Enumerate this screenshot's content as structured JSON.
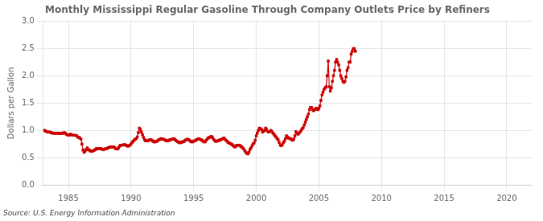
{
  "chart_data": {
    "type": "line",
    "title": "Monthly Mississippi Regular Gasoline Through Company Outlets Price by Refiners",
    "ylabel": "Dollars per Gallon",
    "annotations": [
      "Source: U.S. Energy Information Administration"
    ],
    "color": "#cc0000",
    "marker": "square",
    "line_style": "solid",
    "grid": true,
    "xlim": [
      1983,
      2022
    ],
    "ylim": [
      0.0,
      3.0
    ],
    "xticks": [
      1985,
      1990,
      1995,
      2000,
      2005,
      2010,
      2015,
      2020
    ],
    "yticks": [
      {
        "value": 0.0,
        "label": "0.0"
      },
      0.5,
      {
        "value": 1.0,
        "label": "1.0"
      },
      1.5,
      {
        "value": 2.0,
        "label": "2.0"
      },
      2.5,
      {
        "value": 3.0,
        "label": "3.0"
      }
    ],
    "x": [
      1983.0,
      1983.083,
      1983.167,
      1983.25,
      1983.333,
      1983.417,
      1983.5,
      1983.583,
      1983.667,
      1983.75,
      1983.833,
      1983.917,
      1984.0,
      1984.083,
      1984.167,
      1984.25,
      1984.333,
      1984.417,
      1984.5,
      1984.583,
      1984.667,
      1984.75,
      1984.833,
      1984.917,
      1985.0,
      1985.083,
      1985.167,
      1985.25,
      1985.333,
      1985.417,
      1985.5,
      1985.583,
      1985.667,
      1985.75,
      1985.833,
      1985.917,
      1986.0,
      1986.083,
      1986.167,
      1986.25,
      1986.333,
      1986.417,
      1986.5,
      1986.583,
      1986.667,
      1986.75,
      1986.833,
      1986.917,
      1987.0,
      1987.083,
      1987.167,
      1987.25,
      1987.333,
      1987.417,
      1987.5,
      1987.583,
      1987.667,
      1987.75,
      1987.833,
      1987.917,
      1988.0,
      1988.083,
      1988.167,
      1988.25,
      1988.333,
      1988.417,
      1988.5,
      1988.583,
      1988.667,
      1988.75,
      1988.833,
      1988.917,
      1989.0,
      1989.083,
      1989.167,
      1989.25,
      1989.333,
      1989.417,
      1989.5,
      1989.583,
      1989.667,
      1989.75,
      1989.833,
      1989.917,
      1990.0,
      1990.083,
      1990.167,
      1990.25,
      1990.333,
      1990.417,
      1990.5,
      1990.583,
      1990.667,
      1990.75,
      1990.833,
      1990.917,
      1991.0,
      1991.083,
      1991.167,
      1991.25,
      1991.333,
      1991.417,
      1991.5,
      1991.583,
      1991.667,
      1991.75,
      1991.833,
      1991.917,
      1992.0,
      1992.083,
      1992.167,
      1992.25,
      1992.333,
      1992.417,
      1992.5,
      1992.583,
      1992.667,
      1992.75,
      1992.833,
      1992.917,
      1993.0,
      1993.083,
      1993.167,
      1993.25,
      1993.333,
      1993.417,
      1993.5,
      1993.583,
      1993.667,
      1993.75,
      1993.833,
      1993.917,
      1994.0,
      1994.083,
      1994.167,
      1994.25,
      1994.333,
      1994.417,
      1994.5,
      1994.583,
      1994.667,
      1994.75,
      1994.833,
      1994.917,
      1995.0,
      1995.083,
      1995.167,
      1995.25,
      1995.333,
      1995.417,
      1995.5,
      1995.583,
      1995.667,
      1995.75,
      1995.833,
      1995.917,
      1996.0,
      1996.083,
      1996.167,
      1996.25,
      1996.333,
      1996.417,
      1996.5,
      1996.583,
      1996.667,
      1996.75,
      1996.833,
      1996.917,
      1997.0,
      1997.083,
      1997.167,
      1997.25,
      1997.333,
      1997.417,
      1997.5,
      1997.583,
      1997.667,
      1997.75,
      1997.833,
      1997.917,
      1998.0,
      1998.083,
      1998.167,
      1998.25,
      1998.333,
      1998.417,
      1998.5,
      1998.583,
      1998.667,
      1998.75,
      1998.833,
      1998.917,
      1999.0,
      1999.083,
      1999.167,
      1999.25,
      1999.333,
      1999.417,
      1999.5,
      1999.583,
      1999.667,
      1999.75,
      1999.833,
      1999.917,
      2000.0,
      2000.083,
      2000.167,
      2000.25,
      2000.333,
      2000.417,
      2000.5,
      2000.583,
      2000.667,
      2000.75,
      2000.833,
      2000.917,
      2001.0,
      2001.083,
      2001.167,
      2001.25,
      2001.333,
      2001.417,
      2001.5,
      2001.583,
      2001.667,
      2001.75,
      2001.833,
      2001.917,
      2002.0,
      2002.083,
      2002.167,
      2002.25,
      2002.333,
      2002.417,
      2002.5,
      2002.583,
      2002.667,
      2002.75,
      2002.833,
      2002.917,
      2003.0,
      2003.083,
      2003.167,
      2003.25,
      2003.333,
      2003.417,
      2003.5,
      2003.583,
      2003.667,
      2003.75,
      2003.833,
      2003.917,
      2004.0,
      2004.083,
      2004.167,
      2004.25,
      2004.333,
      2004.417,
      2004.5,
      2004.583,
      2004.667,
      2004.75,
      2004.833,
      2004.917,
      2005.0,
      2005.083,
      2005.167,
      2005.25,
      2005.333,
      2005.417,
      2005.5,
      2005.583,
      2005.667,
      2005.75,
      2005.833,
      2005.917,
      2006.0,
      2006.083,
      2006.167,
      2006.25,
      2006.333,
      2006.417,
      2006.5,
      2006.583,
      2006.667,
      2006.75,
      2006.833,
      2006.917,
      2007.0,
      2007.083,
      2007.167,
      2007.25,
      2007.333,
      2007.417,
      2007.5,
      2007.583,
      2007.667,
      2007.75,
      2007.833,
      2007.917
    ],
    "values": [
      1.0,
      1.0,
      0.99,
      0.98,
      0.97,
      0.97,
      0.97,
      0.96,
      0.96,
      0.95,
      0.95,
      0.95,
      0.95,
      0.95,
      0.95,
      0.94,
      0.94,
      0.95,
      0.95,
      0.95,
      0.96,
      0.95,
      0.93,
      0.92,
      0.91,
      0.92,
      0.93,
      0.92,
      0.91,
      0.91,
      0.91,
      0.91,
      0.9,
      0.88,
      0.87,
      0.86,
      0.84,
      0.75,
      0.64,
      0.6,
      0.62,
      0.65,
      0.68,
      0.65,
      0.64,
      0.62,
      0.62,
      0.62,
      0.63,
      0.64,
      0.65,
      0.67,
      0.67,
      0.67,
      0.67,
      0.67,
      0.66,
      0.65,
      0.65,
      0.66,
      0.67,
      0.67,
      0.68,
      0.69,
      0.69,
      0.7,
      0.7,
      0.7,
      0.69,
      0.67,
      0.66,
      0.66,
      0.68,
      0.71,
      0.73,
      0.73,
      0.73,
      0.74,
      0.74,
      0.73,
      0.72,
      0.71,
      0.72,
      0.73,
      0.75,
      0.78,
      0.8,
      0.82,
      0.84,
      0.85,
      0.88,
      0.96,
      1.04,
      1.02,
      0.97,
      0.92,
      0.87,
      0.83,
      0.81,
      0.81,
      0.81,
      0.82,
      0.83,
      0.83,
      0.82,
      0.8,
      0.79,
      0.79,
      0.8,
      0.8,
      0.82,
      0.83,
      0.84,
      0.85,
      0.84,
      0.84,
      0.83,
      0.82,
      0.81,
      0.81,
      0.82,
      0.82,
      0.83,
      0.84,
      0.84,
      0.85,
      0.83,
      0.82,
      0.8,
      0.79,
      0.78,
      0.77,
      0.78,
      0.79,
      0.79,
      0.8,
      0.82,
      0.83,
      0.84,
      0.83,
      0.82,
      0.8,
      0.79,
      0.79,
      0.8,
      0.81,
      0.82,
      0.83,
      0.84,
      0.85,
      0.84,
      0.83,
      0.82,
      0.8,
      0.79,
      0.79,
      0.82,
      0.84,
      0.86,
      0.87,
      0.88,
      0.89,
      0.87,
      0.84,
      0.82,
      0.8,
      0.8,
      0.81,
      0.82,
      0.82,
      0.83,
      0.84,
      0.85,
      0.86,
      0.84,
      0.82,
      0.8,
      0.78,
      0.77,
      0.76,
      0.75,
      0.74,
      0.72,
      0.7,
      0.7,
      0.72,
      0.73,
      0.73,
      0.73,
      0.71,
      0.7,
      0.68,
      0.66,
      0.63,
      0.6,
      0.58,
      0.57,
      0.6,
      0.65,
      0.68,
      0.72,
      0.75,
      0.77,
      0.82,
      0.9,
      0.95,
      1.0,
      1.04,
      1.03,
      1.02,
      0.97,
      0.98,
      1.0,
      1.04,
      1.02,
      0.98,
      0.97,
      0.98,
      1.0,
      0.98,
      0.95,
      0.93,
      0.9,
      0.88,
      0.85,
      0.83,
      0.78,
      0.73,
      0.72,
      0.74,
      0.78,
      0.8,
      0.85,
      0.9,
      0.88,
      0.86,
      0.85,
      0.85,
      0.83,
      0.82,
      0.84,
      0.9,
      0.98,
      0.95,
      0.93,
      0.95,
      0.97,
      1.0,
      1.03,
      1.05,
      1.1,
      1.15,
      1.2,
      1.25,
      1.3,
      1.38,
      1.42,
      1.42,
      1.38,
      1.36,
      1.38,
      1.4,
      1.4,
      1.38,
      1.4,
      1.45,
      1.55,
      1.65,
      1.7,
      1.75,
      1.78,
      1.8,
      2.0,
      2.27,
      1.8,
      1.72,
      1.78,
      1.9,
      2.0,
      2.1,
      2.25,
      2.3,
      2.25,
      2.2,
      2.1,
      2.0,
      1.95,
      1.9,
      1.88,
      1.9,
      1.98,
      2.1,
      2.15,
      2.25,
      2.25,
      2.4,
      2.45,
      2.5,
      2.5,
      2.45
    ]
  }
}
